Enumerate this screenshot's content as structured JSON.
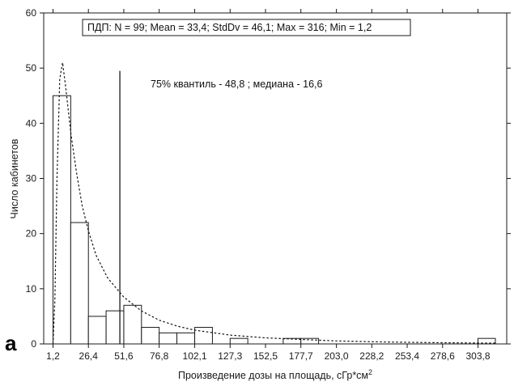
{
  "chart_data": {
    "type": "bar",
    "panel_label": "a",
    "xlabel": "Произведение дозы на площадь, сГр*см",
    "xlabel_sup": "2",
    "ylabel": "Число кабинетов",
    "ylim": [
      0,
      60
    ],
    "yticks": [
      0,
      10,
      20,
      30,
      40,
      50,
      60
    ],
    "xlim": [
      1.2,
      316.2
    ],
    "xticks": [
      "1,2",
      "26,4",
      "51,6",
      "76,8",
      "102,1",
      "127,3",
      "152,5",
      "177,7",
      "203,0",
      "228,2",
      "253,4",
      "278,6",
      "303,8"
    ],
    "bins": [
      {
        "from": 1.2,
        "to": 13.8,
        "count": 45
      },
      {
        "from": 13.8,
        "to": 26.4,
        "count": 22
      },
      {
        "from": 26.4,
        "to": 39.0,
        "count": 5
      },
      {
        "from": 39.0,
        "to": 51.6,
        "count": 6
      },
      {
        "from": 51.6,
        "to": 64.2,
        "count": 7
      },
      {
        "from": 64.2,
        "to": 76.8,
        "count": 3
      },
      {
        "from": 76.8,
        "to": 89.4,
        "count": 2
      },
      {
        "from": 89.4,
        "to": 102.1,
        "count": 2
      },
      {
        "from": 102.1,
        "to": 114.7,
        "count": 3
      },
      {
        "from": 114.7,
        "to": 127.3,
        "count": 0
      },
      {
        "from": 127.3,
        "to": 139.9,
        "count": 1
      },
      {
        "from": 139.9,
        "to": 152.5,
        "count": 0
      },
      {
        "from": 152.5,
        "to": 165.1,
        "count": 0
      },
      {
        "from": 165.1,
        "to": 177.7,
        "count": 1
      },
      {
        "from": 177.7,
        "to": 190.3,
        "count": 1
      },
      {
        "from": 190.3,
        "to": 203.0,
        "count": 0
      },
      {
        "from": 203.0,
        "to": 215.6,
        "count": 0
      },
      {
        "from": 215.6,
        "to": 228.2,
        "count": 0
      },
      {
        "from": 228.2,
        "to": 240.8,
        "count": 0
      },
      {
        "from": 240.8,
        "to": 253.4,
        "count": 0
      },
      {
        "from": 253.4,
        "to": 266.0,
        "count": 0
      },
      {
        "from": 266.0,
        "to": 278.6,
        "count": 0
      },
      {
        "from": 278.6,
        "to": 291.2,
        "count": 0
      },
      {
        "from": 291.2,
        "to": 303.8,
        "count": 0
      },
      {
        "from": 303.8,
        "to": 316.2,
        "count": 1
      }
    ],
    "fit_curve": {
      "style": "dotted",
      "points": [
        [
          1.2,
          0
        ],
        [
          2.5,
          8
        ],
        [
          4,
          30
        ],
        [
          6,
          48
        ],
        [
          8,
          51
        ],
        [
          10,
          47
        ],
        [
          14,
          38
        ],
        [
          18,
          31
        ],
        [
          22,
          25
        ],
        [
          26.4,
          20.5
        ],
        [
          32,
          16
        ],
        [
          40,
          12
        ],
        [
          51.6,
          8.5
        ],
        [
          64,
          6
        ],
        [
          76.8,
          4.3
        ],
        [
          90,
          3.2
        ],
        [
          102.1,
          2.5
        ],
        [
          127.3,
          1.6
        ],
        [
          152.5,
          1.1
        ],
        [
          177.7,
          0.8
        ],
        [
          203,
          0.55
        ],
        [
          228.2,
          0.4
        ],
        [
          253.4,
          0.3
        ],
        [
          278.6,
          0.22
        ],
        [
          303.8,
          0.16
        ],
        [
          316.2,
          0.14
        ]
      ]
    },
    "vline": {
      "x": 48.8,
      "y_top": 49.5
    },
    "annotations": {
      "stats_box": "ПДП:   N = 99; Mean = 33,4; StdDv = 46,1; Max = 316; Min = 1,2",
      "quantile_text": "75% квантиль - 48,8 ; медиана - 16,6"
    },
    "colors": {
      "bar_fill": "#ffffff",
      "stroke": "#1a1a1a",
      "background": "#ffffff"
    },
    "grid": false
  }
}
